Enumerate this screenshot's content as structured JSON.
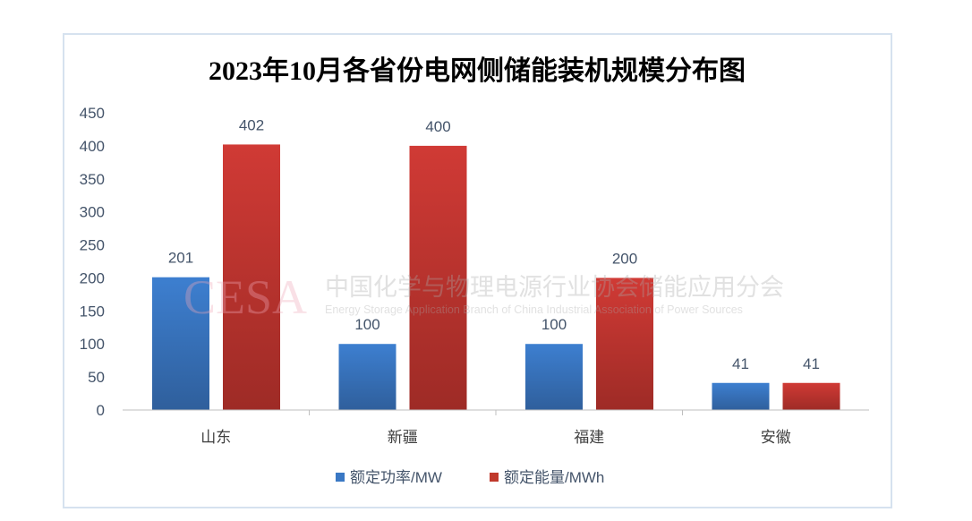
{
  "chart_data": {
    "type": "bar",
    "title": "2023年10月各省份电网侧储能装机规模分布图",
    "categories": [
      "山东",
      "新疆",
      "福建",
      "安徽"
    ],
    "series": [
      {
        "name": "额定功率/MW",
        "values": [
          201,
          100,
          100,
          41
        ],
        "color": "#3a78c4"
      },
      {
        "name": "额定能量/MWh",
        "values": [
          402,
          400,
          200,
          41
        ],
        "color": "#c0392b"
      }
    ],
    "ylim": [
      0,
      450
    ],
    "yticks": [
      0,
      50,
      100,
      150,
      200,
      250,
      300,
      350,
      400,
      450
    ],
    "grid": false,
    "legend": "bottom",
    "data_labels": true
  },
  "watermark": {
    "logo": "CESA",
    "cn": "中国化学与物理电源行业协会储能应用分会",
    "en": "Energy Storage Application Branch of China Industrial Association of Power Sources"
  }
}
